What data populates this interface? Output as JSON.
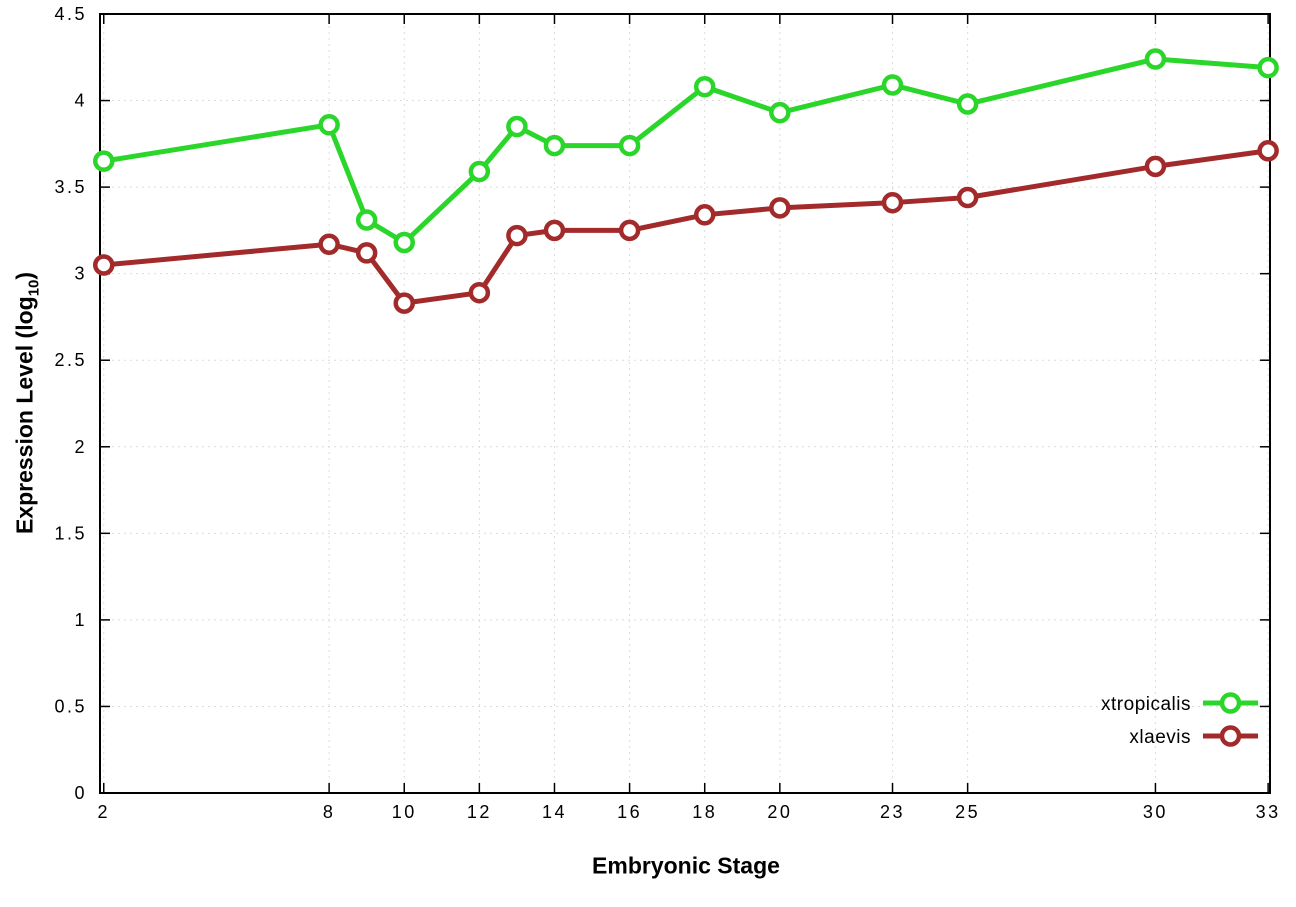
{
  "chart_data": {
    "type": "line",
    "title": "",
    "xlabel": "Embryonic Stage",
    "ylabel_main": "Expression Level (log",
    "ylabel_sub": "10",
    "ylabel_close": ")",
    "x": [
      2,
      8,
      9,
      10,
      12,
      13,
      14,
      16,
      18,
      20,
      23,
      25,
      30,
      33
    ],
    "series": [
      {
        "name": "xtropicalis",
        "color": "#2bd62b",
        "values": [
          3.65,
          3.86,
          3.31,
          3.18,
          3.59,
          3.85,
          3.74,
          3.74,
          4.08,
          3.93,
          4.09,
          3.98,
          4.24,
          4.19
        ]
      },
      {
        "name": "xlaevis",
        "color": "#a32a2a",
        "values": [
          3.05,
          3.17,
          3.12,
          2.83,
          2.89,
          3.22,
          3.25,
          3.25,
          3.34,
          3.38,
          3.41,
          3.44,
          3.62,
          3.71
        ]
      }
    ],
    "xlim": [
      1.9,
      33.05
    ],
    "ylim": [
      0,
      4.5
    ],
    "xticks": {
      "values": [
        2,
        8,
        10,
        12,
        14,
        16,
        18,
        20,
        23,
        25,
        30,
        33
      ],
      "labels": [
        "2",
        "8",
        "10",
        "12",
        "14",
        "16",
        "18",
        "20",
        "23",
        "25",
        "30",
        "33"
      ]
    },
    "yticks": {
      "values": [
        0,
        0.5,
        1,
        1.5,
        2,
        2.5,
        3,
        3.5,
        4,
        4.5
      ],
      "labels": [
        "0",
        "0.5",
        "1",
        "1.5",
        "2",
        "2.5",
        "3",
        "3.5",
        "4",
        "4.5"
      ]
    },
    "grid": true,
    "legend_position": "bottom-right",
    "marker": "open-circle",
    "line_width": 5,
    "colors": {
      "background": "#ffffff",
      "border": "#000000",
      "grid": "#dcdcdc",
      "text": "#000000"
    }
  }
}
